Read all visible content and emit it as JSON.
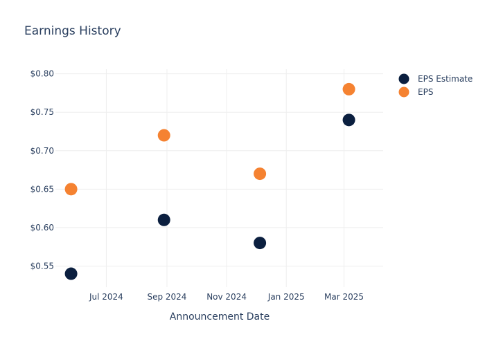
{
  "chart_data": {
    "type": "scatter",
    "title": "Earnings History",
    "xlabel": "Announcement Date",
    "ylabel": "",
    "x_axis_type": "date",
    "xlim": [
      "2024-05-10",
      "2025-04-10"
    ],
    "ylim": [
      0.5225,
      0.806
    ],
    "x_ticks": [
      {
        "value": "2024-07-01",
        "label": "Jul 2024"
      },
      {
        "value": "2024-09-01",
        "label": "Sep 2024"
      },
      {
        "value": "2024-11-01",
        "label": "Nov 2024"
      },
      {
        "value": "2025-01-01",
        "label": "Jan 2025"
      },
      {
        "value": "2025-03-01",
        "label": "Mar 2025"
      }
    ],
    "y_ticks": [
      {
        "value": 0.55,
        "label": "$0.55"
      },
      {
        "value": 0.6,
        "label": "$0.60"
      },
      {
        "value": 0.65,
        "label": "$0.65"
      },
      {
        "value": 0.7,
        "label": "$0.70"
      },
      {
        "value": 0.75,
        "label": "$0.75"
      },
      {
        "value": 0.8,
        "label": "$0.80"
      }
    ],
    "grid": true,
    "legend_position": "top-right",
    "series": [
      {
        "name": "EPS Estimate",
        "color": "#0b1f3f",
        "points": [
          {
            "x": "2024-05-26",
            "y": 0.54
          },
          {
            "x": "2024-08-29",
            "y": 0.61
          },
          {
            "x": "2024-12-05",
            "y": 0.58
          },
          {
            "x": "2025-03-06",
            "y": 0.74
          }
        ]
      },
      {
        "name": "EPS",
        "color": "#f58231",
        "points": [
          {
            "x": "2024-05-26",
            "y": 0.65
          },
          {
            "x": "2024-08-29",
            "y": 0.72
          },
          {
            "x": "2024-12-05",
            "y": 0.67
          },
          {
            "x": "2025-03-06",
            "y": 0.78
          }
        ]
      }
    ]
  }
}
